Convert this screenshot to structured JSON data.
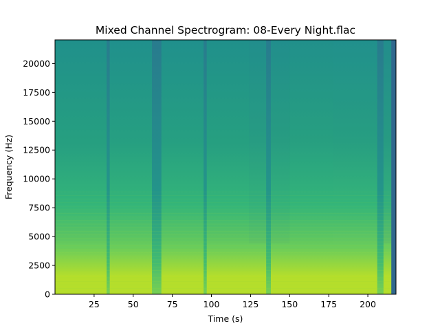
{
  "chart_data": {
    "type": "heatmap",
    "title": "Mixed Channel Spectrogram: 08-Every Night.flac",
    "xlabel": "Time (s)",
    "ylabel": "Frequency (Hz)",
    "xlim": [
      0,
      218
    ],
    "ylim": [
      0,
      22050
    ],
    "x_ticks": [
      25,
      50,
      75,
      100,
      125,
      150,
      175,
      200
    ],
    "x_tick_labels": [
      "25",
      "50",
      "75",
      "100",
      "125",
      "150",
      "175",
      "200"
    ],
    "y_ticks": [
      0,
      2500,
      5000,
      7500,
      10000,
      12500,
      15000,
      17500,
      20000
    ],
    "y_tick_labels": [
      "0",
      "2500",
      "5000",
      "7500",
      "10000",
      "12500",
      "15000",
      "17500",
      "20000"
    ],
    "colormap": "viridis",
    "audio_end_time": 215,
    "segments": [
      {
        "start": 0,
        "end": 34,
        "level": 0.55
      },
      {
        "start": 34,
        "end": 62,
        "level": 0.58
      },
      {
        "start": 62,
        "end": 68,
        "level": 0.35
      },
      {
        "start": 68,
        "end": 96,
        "level": 0.58
      },
      {
        "start": 96,
        "end": 124,
        "level": 0.55
      },
      {
        "start": 124,
        "end": 137,
        "level": 0.45
      },
      {
        "start": 137,
        "end": 150,
        "level": 0.48
      },
      {
        "start": 150,
        "end": 178,
        "level": 0.56
      },
      {
        "start": 178,
        "end": 206,
        "level": 0.57
      },
      {
        "start": 206,
        "end": 215,
        "level": 0.42
      }
    ],
    "quiet_bands": [
      {
        "start": 33,
        "end": 35
      },
      {
        "start": 62,
        "end": 68
      },
      {
        "start": 95,
        "end": 97
      },
      {
        "start": 135,
        "end": 138
      },
      {
        "start": 206,
        "end": 210
      }
    ],
    "colors": {
      "bright": "#b5de2b",
      "mid": "#35b779",
      "teal": "#21918c",
      "dark": "#2a788e",
      "outside": "#31688e"
    }
  }
}
